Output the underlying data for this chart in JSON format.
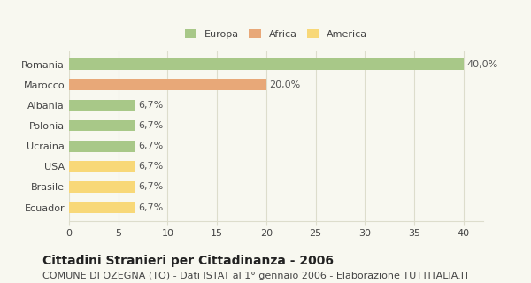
{
  "categories": [
    "Romania",
    "Marocco",
    "Albania",
    "Polonia",
    "Ucraina",
    "USA",
    "Brasile",
    "Ecuador"
  ],
  "values": [
    40.0,
    20.0,
    6.7,
    6.7,
    6.7,
    6.7,
    6.7,
    6.7
  ],
  "labels": [
    "40,0%",
    "20,0%",
    "6,7%",
    "6,7%",
    "6,7%",
    "6,7%",
    "6,7%",
    "6,7%"
  ],
  "colors": [
    "#a8c888",
    "#e8a878",
    "#a8c888",
    "#a8c888",
    "#a8c888",
    "#f8d878",
    "#f8d878",
    "#f8d878"
  ],
  "legend": [
    {
      "label": "Europa",
      "color": "#a8c888"
    },
    {
      "label": "Africa",
      "color": "#e8a878"
    },
    {
      "label": "America",
      "color": "#f8d878"
    }
  ],
  "xlim": [
    0,
    42
  ],
  "xticks": [
    0,
    5,
    10,
    15,
    20,
    25,
    30,
    35,
    40
  ],
  "title": "Cittadini Stranieri per Cittadinanza - 2006",
  "subtitle": "COMUNE DI OZEGNA (TO) - Dati ISTAT al 1° gennaio 2006 - Elaborazione TUTTITALIA.IT",
  "bg_color": "#f8f8f0",
  "grid_color": "#ddddcc",
  "bar_height": 0.55,
  "title_fontsize": 10,
  "subtitle_fontsize": 8,
  "label_fontsize": 8,
  "tick_fontsize": 8
}
